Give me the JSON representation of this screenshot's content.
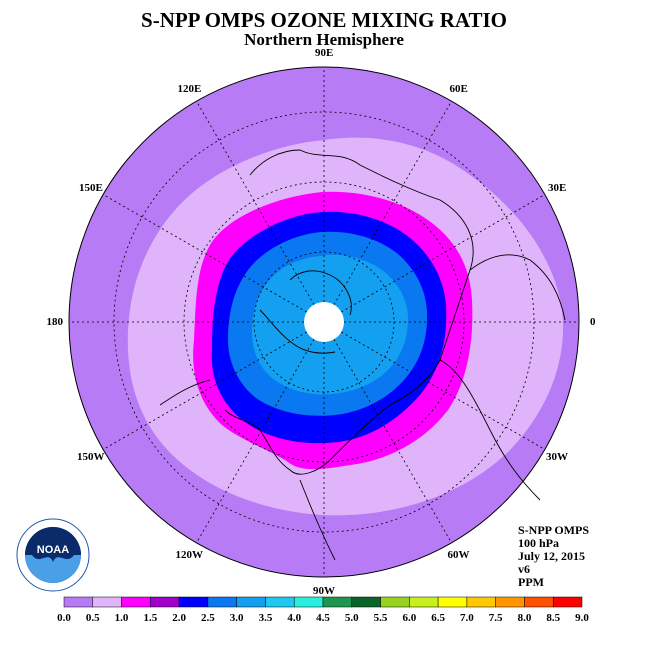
{
  "header": {
    "title": "S-NPP OMPS OZONE MIXING RATIO",
    "subtitle": "Northern Hemisphere"
  },
  "info": {
    "lines": [
      "S-NPP OMPS",
      "100 hPa",
      "July 12, 2015",
      "v6",
      "PPM"
    ]
  },
  "longitude_labels": [
    {
      "label": "90E",
      "lon": 90
    },
    {
      "label": "60E",
      "lon": 60
    },
    {
      "label": "30E",
      "lon": 30
    },
    {
      "label": "0",
      "lon": 0
    },
    {
      "label": "30W",
      "lon": -30
    },
    {
      "label": "60W",
      "lon": -60
    },
    {
      "label": "90W",
      "lon": -90
    },
    {
      "label": "120W",
      "lon": -120
    },
    {
      "label": "150W",
      "lon": -150
    },
    {
      "label": "180",
      "lon": 180
    },
    {
      "label": "150E",
      "lon": 150
    },
    {
      "label": "120E",
      "lon": 120
    }
  ],
  "colorbar": {
    "ticks": [
      "0.0",
      "0.5",
      "1.0",
      "1.5",
      "2.0",
      "2.5",
      "3.0",
      "3.5",
      "4.0",
      "4.5",
      "5.0",
      "5.5",
      "6.0",
      "6.5",
      "7.0",
      "7.5",
      "8.0",
      "8.5",
      "9.0"
    ],
    "colors": [
      "#b77bf5",
      "#e0b4fa",
      "#ff00ff",
      "#a000c8",
      "#0000ff",
      "#0a78f0",
      "#14a0f0",
      "#1ec8f0",
      "#28f0dc",
      "#1e9650",
      "#0a6428",
      "#96d21e",
      "#c8f01e",
      "#ffff00",
      "#ffc800",
      "#ff9600",
      "#ff5000",
      "#ff0000",
      "#8c5032"
    ]
  },
  "logo": {
    "text": "NOAA"
  },
  "map_colors": {
    "outer": "#b77bf5",
    "band_0_5": "#e0b4fa",
    "band_1_0": "#ff00ff",
    "band_1_5": "#0000ff",
    "band_2_0": "#0a78f0",
    "band_2_5": "#14a0f0",
    "pole": "#ffffff"
  }
}
